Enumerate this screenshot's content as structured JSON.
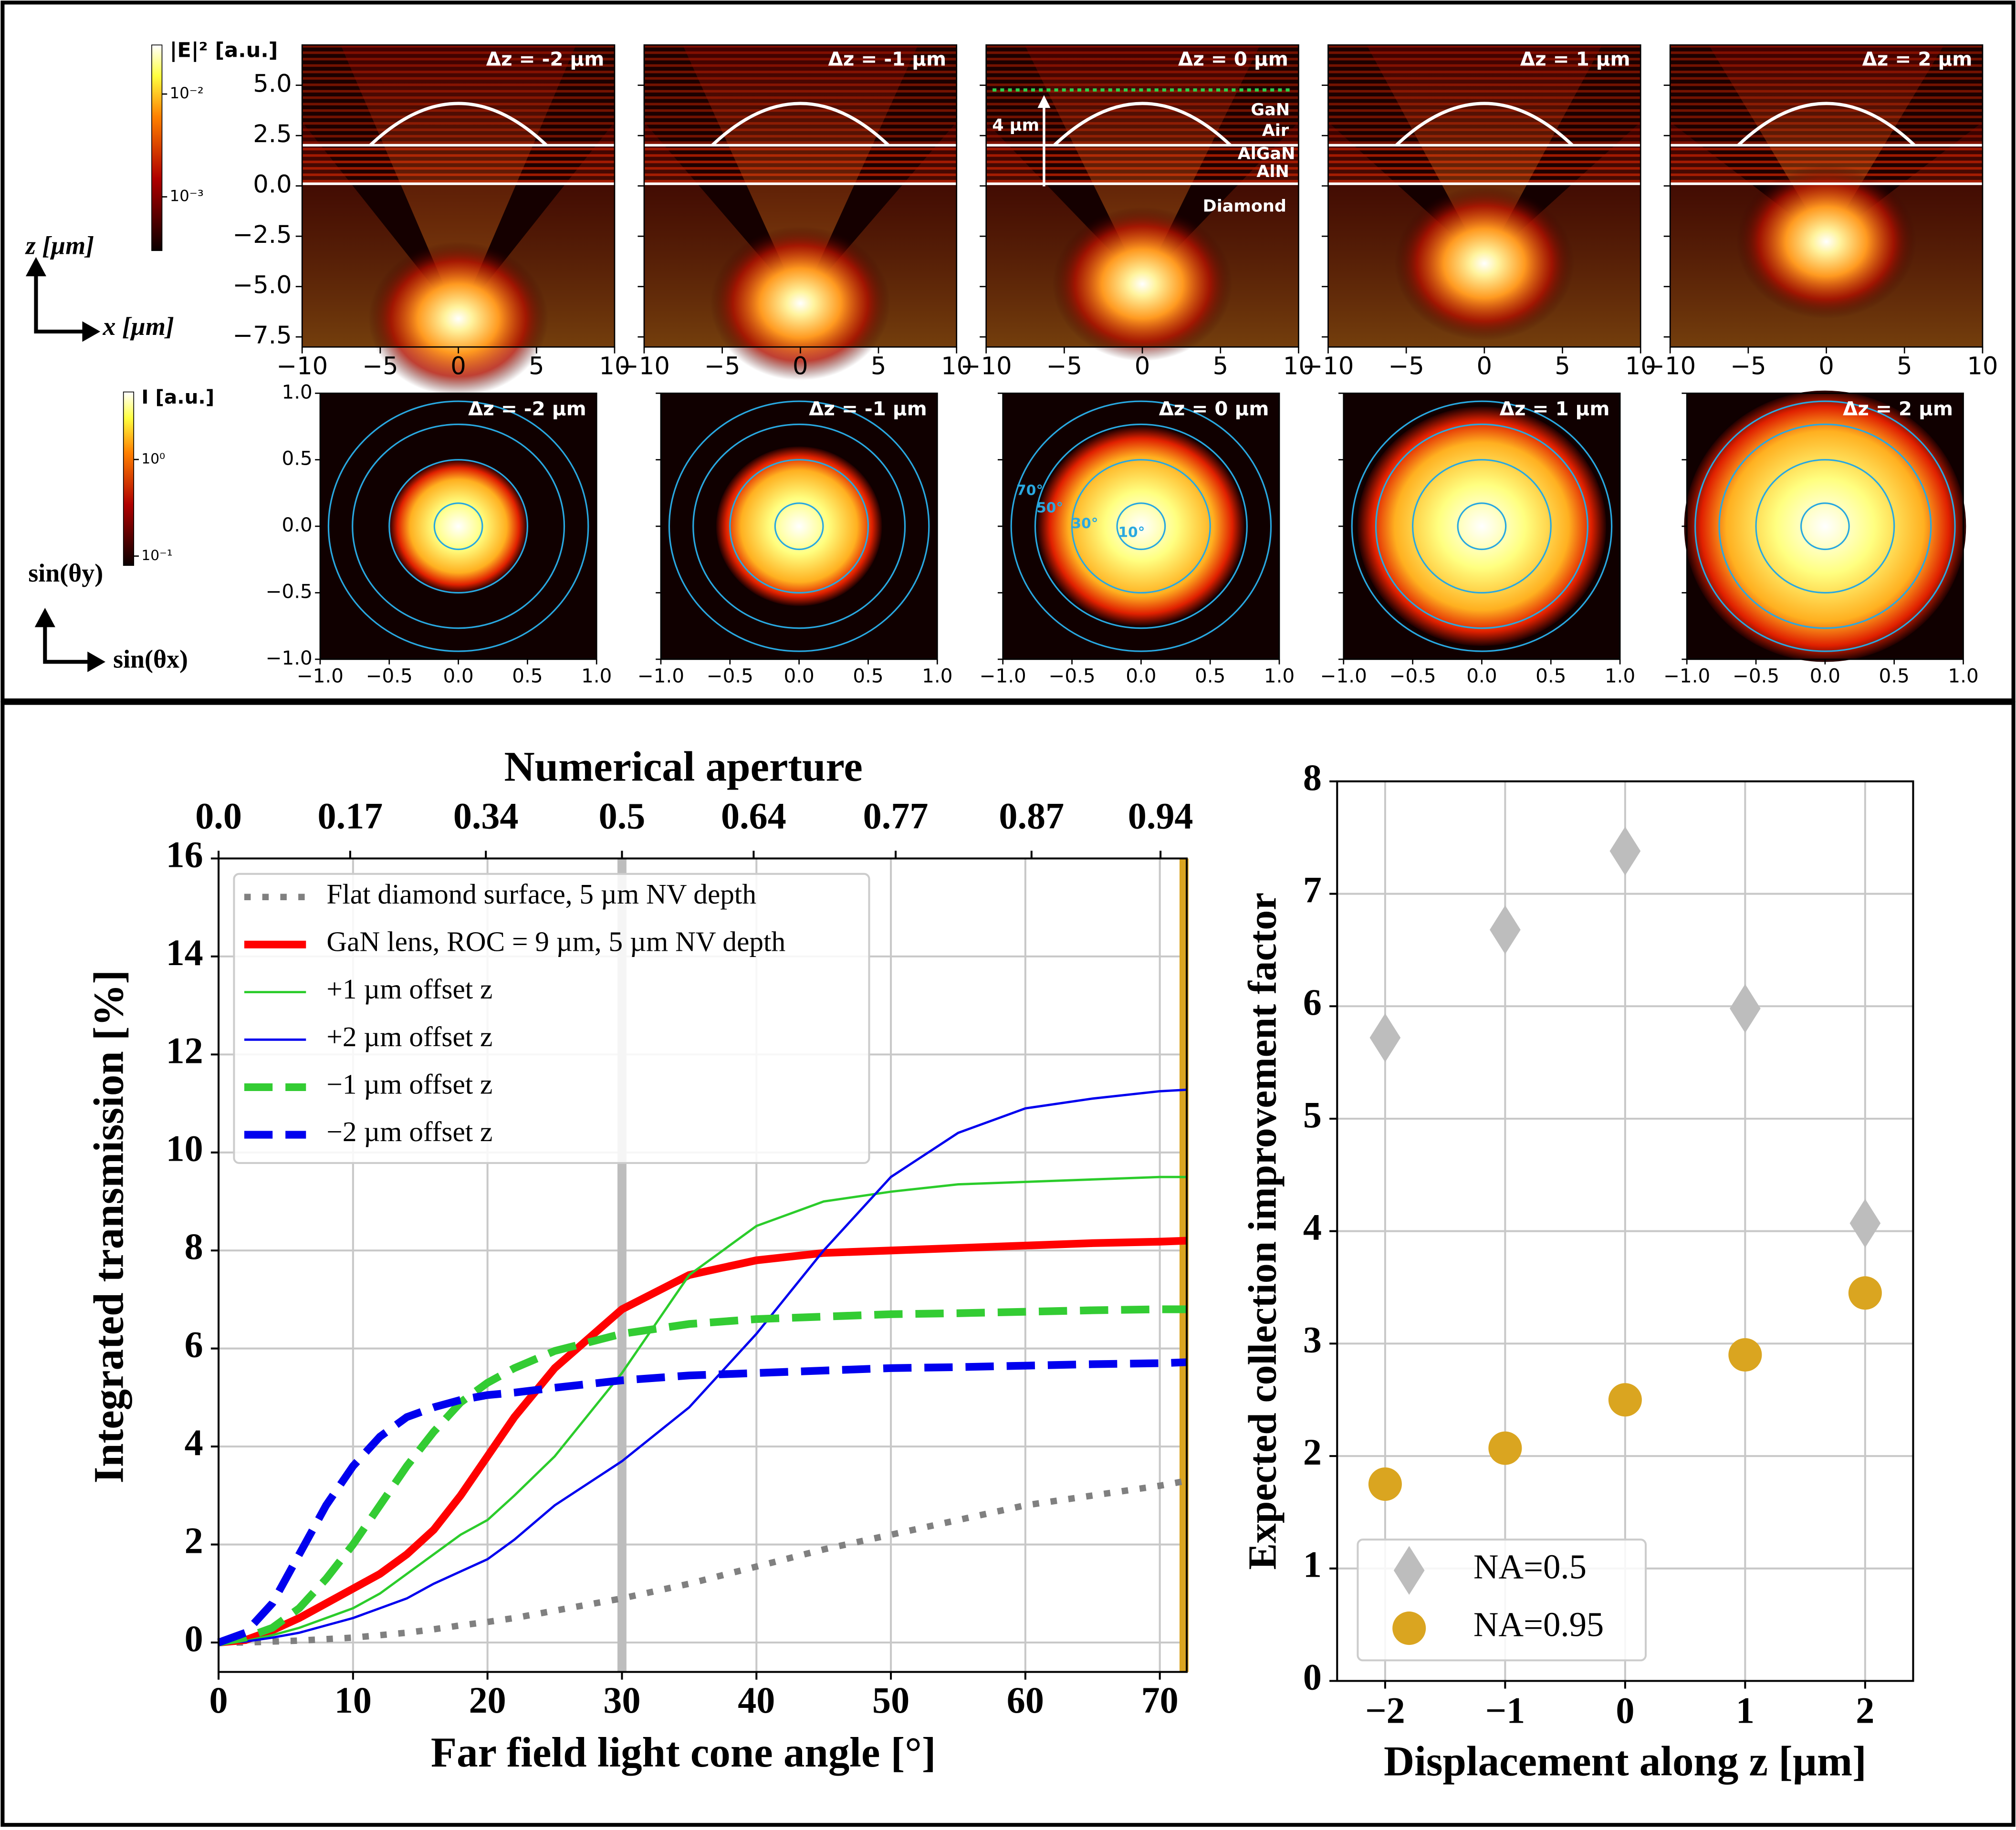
{
  "chart_data": [
    {
      "type": "near_field",
      "panel_titles": [
        "Δz = -2 µm",
        "Δz = -1 µm",
        "Δz = 0 µm",
        "Δz = 1 µm",
        "Δz = 2 µm"
      ],
      "xlabel": "x [µm]",
      "ylabel": "z [µm]",
      "xlim": [
        -10,
        10
      ],
      "xticks": [
        {
          "value": -10,
          "label": "−10"
        },
        {
          "value": -5,
          "label": "−5"
        },
        0,
        5,
        10
      ],
      "ylim": [
        -8,
        7
      ],
      "yticks": [
        {
          "value": 5,
          "label": "5.0"
        },
        {
          "value": 2.5,
          "label": "2.5"
        },
        {
          "value": 0,
          "label": "0.0"
        },
        {
          "value": -2.5,
          "label": "−2.5"
        },
        {
          "value": -5,
          "label": "−5.0"
        },
        {
          "value": -7.5,
          "label": "−7.5"
        }
      ],
      "colorbar": {
        "label": "|E|² [a.u.]",
        "clim": [
          0.0003,
          0.03
        ],
        "log": true,
        "ticks": [
          {
            "value": 0.01,
            "label": "10⁻²"
          },
          {
            "value": 0.001,
            "label": "10⁻³"
          }
        ]
      },
      "annotations": [
        "GaN",
        "Air",
        "AlGaN",
        "AlN",
        "Diamond",
        "4 µm"
      ]
    },
    {
      "type": "far_field",
      "panel_titles": [
        "Δz = -2 µm",
        "Δz = -1 µm",
        "Δz = 0 µm",
        "Δz = 1 µm",
        "Δz = 2 µm"
      ],
      "xlabel": "sin(θx)",
      "ylabel": "sin(θy)",
      "xlim": [
        -1,
        1
      ],
      "xticks": [
        {
          "value": -1,
          "label": "−1.0"
        },
        {
          "value": -0.5,
          "label": "−0.5"
        },
        {
          "value": 0,
          "label": "0.0"
        },
        0.5,
        {
          "value": 1,
          "label": "1.0"
        }
      ],
      "ylim": [
        -1,
        1
      ],
      "yticks": [
        {
          "value": 1,
          "label": "1.0"
        },
        0.5,
        {
          "value": 0,
          "label": "0.0"
        },
        {
          "value": -0.5,
          "label": "−0.5"
        },
        {
          "value": -1,
          "label": "−1.0"
        }
      ],
      "circles": [
        {
          "value": 70,
          "label": "70°"
        },
        {
          "value": 50,
          "label": "50°"
        },
        {
          "value": 30,
          "label": "30°"
        },
        {
          "value": 10,
          "label": "10°"
        }
      ],
      "circle_color": "#29a8e0",
      "colorbar": {
        "label": "I [a.u.]",
        "clim": [
          0.08,
          5
        ],
        "log": true,
        "ticks": [
          {
            "value": 1,
            "label": "10⁰"
          },
          {
            "value": 0.1,
            "label": "10⁻¹"
          }
        ]
      }
    },
    {
      "type": "line",
      "xlabel": "Far field light cone angle [°]",
      "ylabel": "Integrated transmission [%]",
      "x2label": "Numerical aperture",
      "xlim": [
        0,
        72
      ],
      "xticks": [
        0,
        10,
        20,
        30,
        40,
        50,
        60,
        70
      ],
      "x2ticks": [
        {
          "value": 0,
          "label": "0.0"
        },
        0.17,
        0.34,
        0.5,
        0.64,
        0.77,
        0.87,
        0.94
      ],
      "ylim": [
        -0.6,
        16
      ],
      "yticks": [
        0,
        2,
        4,
        6,
        8,
        10,
        12,
        14,
        16
      ],
      "grid": true,
      "legend": "upper left",
      "vlines": [
        {
          "x": 30,
          "color": "#bdbdbd"
        },
        {
          "x": 71.8,
          "color": "#daa520"
        }
      ],
      "x": [
        0,
        2,
        4,
        6,
        8,
        10,
        12,
        14,
        16,
        18,
        20,
        22,
        25,
        30,
        35,
        40,
        45,
        50,
        55,
        60,
        65,
        70,
        72
      ],
      "series": [
        {
          "name": "Flat diamond surface, 5 µm NV depth",
          "color": "#808080",
          "linestyle": "dotted",
          "linewidth": 5,
          "values": [
            0,
            0,
            0.02,
            0.04,
            0.07,
            0.1,
            0.15,
            0.2,
            0.27,
            0.35,
            0.42,
            0.5,
            0.65,
            0.9,
            1.2,
            1.55,
            1.9,
            2.2,
            2.5,
            2.8,
            3.0,
            3.2,
            3.3
          ]
        },
        {
          "name": "GaN lens, ROC = 9 µm, 5 µm NV depth",
          "color": "#ff0000",
          "linestyle": "solid",
          "linewidth": 6,
          "values": [
            0,
            0.05,
            0.25,
            0.5,
            0.8,
            1.1,
            1.4,
            1.8,
            2.3,
            3.0,
            3.8,
            4.6,
            5.6,
            6.8,
            7.5,
            7.8,
            7.95,
            8.0,
            8.05,
            8.1,
            8.15,
            8.18,
            8.2
          ]
        },
        {
          "name": "+1 µm offset z",
          "color": "#2bcc2b",
          "linestyle": "solid",
          "linewidth": 1.8,
          "values": [
            0,
            0.03,
            0.15,
            0.3,
            0.5,
            0.7,
            1.0,
            1.4,
            1.8,
            2.2,
            2.5,
            3.0,
            3.8,
            5.5,
            7.5,
            8.5,
            9.0,
            9.2,
            9.35,
            9.4,
            9.45,
            9.5,
            9.5
          ]
        },
        {
          "name": "+2 µm offset z",
          "color": "#0000ee",
          "linestyle": "solid",
          "linewidth": 1.8,
          "values": [
            0,
            0.02,
            0.1,
            0.2,
            0.35,
            0.5,
            0.7,
            0.9,
            1.2,
            1.45,
            1.7,
            2.1,
            2.8,
            3.7,
            4.8,
            6.3,
            8.0,
            9.5,
            10.4,
            10.9,
            11.1,
            11.25,
            11.28
          ]
        },
        {
          "name": "−1 µm offset z",
          "color": "#33cc33",
          "linestyle": "dashed",
          "linewidth": 6,
          "values": [
            0,
            0.1,
            0.3,
            0.7,
            1.3,
            2.0,
            2.8,
            3.6,
            4.3,
            4.9,
            5.3,
            5.6,
            5.95,
            6.3,
            6.5,
            6.6,
            6.65,
            6.7,
            6.72,
            6.75,
            6.78,
            6.8,
            6.8
          ]
        },
        {
          "name": "−2 µm offset z",
          "color": "#0000ee",
          "linestyle": "dashed",
          "linewidth": 6,
          "values": [
            0,
            0.2,
            0.8,
            1.8,
            2.8,
            3.6,
            4.2,
            4.6,
            4.8,
            4.95,
            5.05,
            5.1,
            5.2,
            5.35,
            5.45,
            5.5,
            5.55,
            5.6,
            5.62,
            5.65,
            5.68,
            5.7,
            5.72
          ]
        }
      ]
    },
    {
      "type": "scatter",
      "xlabel": "Displacement along z [µm]",
      "ylabel": "Expected collection improvement factor",
      "xlim": [
        -2.4,
        2.4
      ],
      "xticks": [
        {
          "value": -2,
          "label": "−2"
        },
        {
          "value": -1,
          "label": "−1"
        },
        0,
        1,
        2
      ],
      "ylim": [
        0,
        8
      ],
      "yticks": [
        0,
        1,
        2,
        3,
        4,
        5,
        6,
        7,
        8
      ],
      "grid": true,
      "legend": "lower left",
      "x": [
        -2,
        -1,
        0,
        1,
        2
      ],
      "series": [
        {
          "name": "NA=0.5",
          "color": "#bdbdbd",
          "marker": "diamond",
          "values": [
            5.72,
            6.68,
            7.38,
            5.98,
            4.07
          ]
        },
        {
          "name": "NA=0.95",
          "color": "#daa520",
          "marker": "circle",
          "values": [
            1.75,
            2.07,
            2.5,
            2.9,
            3.45
          ]
        }
      ]
    }
  ]
}
